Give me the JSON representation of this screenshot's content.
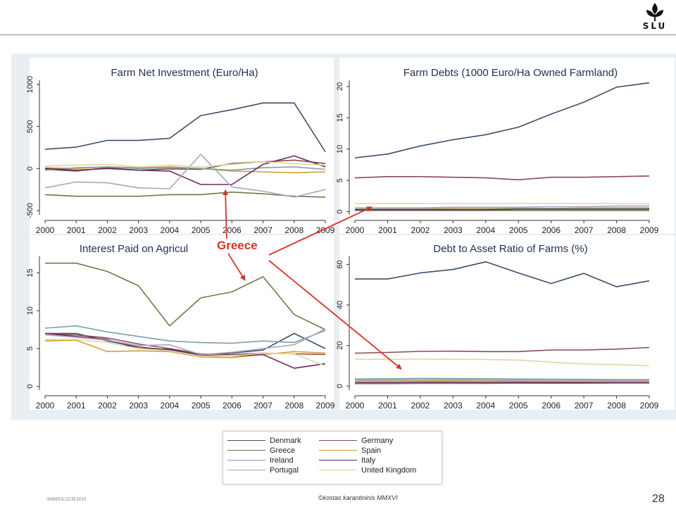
{
  "header": {
    "logo_text": "SLU",
    "logo_icon": "slu-tree-icon"
  },
  "annotation": {
    "label": "Greece",
    "color": "#d9322a"
  },
  "footer": {
    "left": "ΑΘΗΝΑ/22/ΙΙ/2016",
    "center": "©kostas karantininis MMXVI",
    "page": "28"
  },
  "legend": {
    "items": [
      {
        "label": "Denmark",
        "color": "#3b4f6b"
      },
      {
        "label": "Germany",
        "color": "#8a4a52"
      },
      {
        "label": "Greece",
        "color": "#6f7a4a"
      },
      {
        "label": "Spain",
        "color": "#d1a233"
      },
      {
        "label": "Ireland",
        "color": "#7aa0a4"
      },
      {
        "label": "Italy",
        "color": "#6a2a5e"
      },
      {
        "label": "Portugal",
        "color": "#a8a8b8"
      },
      {
        "label": "United Kingdom",
        "color": "#e3d6a0"
      }
    ]
  },
  "chart_data": [
    {
      "type": "line",
      "title": "Farm Net Investment (Euro/Ha)",
      "x": [
        2000,
        2001,
        2002,
        2003,
        2004,
        2005,
        2006,
        2007,
        2008,
        2009
      ],
      "ylim": [
        -550,
        1050
      ],
      "yticks": [
        -500,
        0,
        500,
        1000
      ],
      "series": [
        {
          "name": "Denmark",
          "values": [
            230,
            255,
            335,
            335,
            360,
            630,
            700,
            780,
            780,
            200
          ]
        },
        {
          "name": "Germany",
          "values": [
            -10,
            -30,
            10,
            -20,
            -5,
            -10,
            60,
            80,
            100,
            60
          ]
        },
        {
          "name": "Greece",
          "values": [
            -310,
            -330,
            -330,
            -330,
            -310,
            -310,
            -280,
            -300,
            -330,
            -340
          ]
        },
        {
          "name": "Spain",
          "values": [
            10,
            0,
            20,
            10,
            20,
            0,
            -30,
            -40,
            -50,
            -40
          ]
        },
        {
          "name": "Ireland",
          "values": [
            -20,
            10,
            20,
            0,
            10,
            0,
            -20,
            10,
            20,
            -10
          ]
        },
        {
          "name": "Italy",
          "values": [
            0,
            -20,
            0,
            -20,
            -30,
            -190,
            -190,
            50,
            150,
            20
          ]
        },
        {
          "name": "Portugal",
          "values": [
            -230,
            -160,
            -170,
            -230,
            -240,
            170,
            -220,
            -270,
            -340,
            -250
          ]
        },
        {
          "name": "United Kingdom",
          "values": [
            30,
            40,
            50,
            20,
            40,
            20,
            50,
            80,
            60,
            40
          ]
        }
      ]
    },
    {
      "type": "line",
      "title": "Farm Debts (1000 Euro/Ha Owned Farmland)",
      "x": [
        2000,
        2001,
        2002,
        2003,
        2004,
        2005,
        2006,
        2007,
        2008,
        2009
      ],
      "ylim": [
        -0.5,
        21
      ],
      "yticks": [
        0,
        5,
        10,
        15,
        20
      ],
      "series": [
        {
          "name": "Denmark",
          "values": [
            8.6,
            9.2,
            10.5,
            11.5,
            12.3,
            13.5,
            15.6,
            17.5,
            19.9,
            20.6
          ]
        },
        {
          "name": "Germany",
          "values": [
            5.4,
            5.6,
            5.6,
            5.5,
            5.4,
            5.1,
            5.5,
            5.5,
            5.6,
            5.7
          ]
        },
        {
          "name": "Greece",
          "values": [
            0.2,
            0.2,
            0.2,
            0.2,
            0.2,
            0.2,
            0.2,
            0.2,
            0.2,
            0.2
          ]
        },
        {
          "name": "Spain",
          "values": [
            0.5,
            0.5,
            0.5,
            0.5,
            0.5,
            0.5,
            0.5,
            0.6,
            0.6,
            0.6
          ]
        },
        {
          "name": "Ireland",
          "values": [
            0.4,
            0.4,
            0.4,
            0.4,
            0.4,
            0.5,
            0.5,
            0.5,
            0.5,
            0.5
          ]
        },
        {
          "name": "Italy",
          "values": [
            0.3,
            0.3,
            0.3,
            0.3,
            0.3,
            0.4,
            0.4,
            0.4,
            0.4,
            0.4
          ]
        },
        {
          "name": "Portugal",
          "values": [
            0.6,
            0.6,
            0.6,
            0.7,
            0.7,
            0.7,
            0.8,
            0.8,
            0.9,
            0.9
          ]
        },
        {
          "name": "United Kingdom",
          "values": [
            1.3,
            1.3,
            1.3,
            1.3,
            1.3,
            1.3,
            1.3,
            1.3,
            1.3,
            1.3
          ]
        }
      ]
    },
    {
      "type": "line",
      "title": "Interest Paid on Agricul",
      "x": [
        2000,
        2001,
        2002,
        2003,
        2004,
        2005,
        2006,
        2007,
        2008,
        2009
      ],
      "ylim": [
        -0.5,
        17.2
      ],
      "yticks": [
        0,
        5,
        10,
        15
      ],
      "series": [
        {
          "name": "Denmark",
          "values": [
            7.0,
            7.0,
            6.0,
            5.2,
            4.8,
            4.2,
            4.4,
            4.8,
            7.0,
            5.0
          ]
        },
        {
          "name": "Germany",
          "values": [
            7.0,
            6.8,
            6.4,
            5.6,
            5.0,
            4.3,
            4.2,
            4.4,
            4.3,
            4.2
          ]
        },
        {
          "name": "Greece",
          "values": [
            16.3,
            16.3,
            15.2,
            13.3,
            8.0,
            11.7,
            12.5,
            14.5,
            9.5,
            7.5
          ]
        },
        {
          "name": "Spain",
          "values": [
            6.0,
            6.1,
            4.6,
            4.7,
            4.6,
            3.9,
            3.8,
            4.2,
            4.6,
            4.4
          ]
        },
        {
          "name": "Ireland",
          "values": [
            7.7,
            8.0,
            7.2,
            6.6,
            6.0,
            5.8,
            5.7,
            6.0,
            5.8,
            7.4
          ]
        },
        {
          "name": "Italy",
          "values": [
            7.0,
            6.6,
            6.2,
            5.0,
            4.9,
            4.1,
            4.0,
            4.2,
            2.4,
            3.0
          ]
        },
        {
          "name": "Portugal",
          "values": [
            6.8,
            6.5,
            6.1,
            5.4,
            5.5,
            4.2,
            4.5,
            5.0,
            5.5,
            7.6
          ]
        },
        {
          "name": "United Kingdom",
          "values": [
            6.2,
            6.2,
            5.8,
            5.0,
            4.7,
            4.0,
            4.0,
            4.4,
            4.3,
            2.7
          ]
        }
      ]
    },
    {
      "type": "line",
      "title": "Debt to Asset Ratio of Farms (%)",
      "x": [
        2000,
        2001,
        2002,
        2003,
        2004,
        2005,
        2006,
        2007,
        2008,
        2009
      ],
      "ylim": [
        -2,
        64
      ],
      "yticks": [
        0,
        20,
        40,
        60
      ],
      "series": [
        {
          "name": "Denmark",
          "values": [
            52.8,
            52.8,
            55.8,
            57.5,
            61.3,
            55.8,
            50.6,
            55.6,
            49.0,
            51.9
          ]
        },
        {
          "name": "Germany",
          "values": [
            16.2,
            16.6,
            17.1,
            17.2,
            17.0,
            17.0,
            17.8,
            17.8,
            18.2,
            19.0
          ]
        },
        {
          "name": "Greece",
          "values": [
            1.2,
            1.2,
            1.3,
            1.3,
            1.3,
            1.4,
            1.4,
            1.4,
            1.5,
            1.5
          ]
        },
        {
          "name": "Spain",
          "values": [
            2.6,
            2.6,
            2.6,
            2.6,
            2.5,
            2.4,
            2.3,
            2.3,
            2.4,
            2.4
          ]
        },
        {
          "name": "Ireland",
          "values": [
            3.5,
            3.6,
            3.8,
            3.7,
            3.6,
            3.5,
            3.4,
            3.3,
            3.2,
            3.2
          ]
        },
        {
          "name": "Italy",
          "values": [
            1.8,
            1.8,
            1.9,
            1.9,
            1.8,
            1.8,
            1.7,
            1.7,
            1.7,
            1.7
          ]
        },
        {
          "name": "Portugal",
          "values": [
            3.0,
            3.0,
            3.1,
            3.1,
            3.0,
            2.9,
            2.9,
            2.9,
            2.8,
            2.8
          ]
        },
        {
          "name": "United Kingdom",
          "values": [
            13.2,
            13.2,
            13.3,
            13.2,
            13.1,
            12.8,
            11.8,
            10.9,
            10.6,
            10.0
          ]
        }
      ]
    }
  ]
}
